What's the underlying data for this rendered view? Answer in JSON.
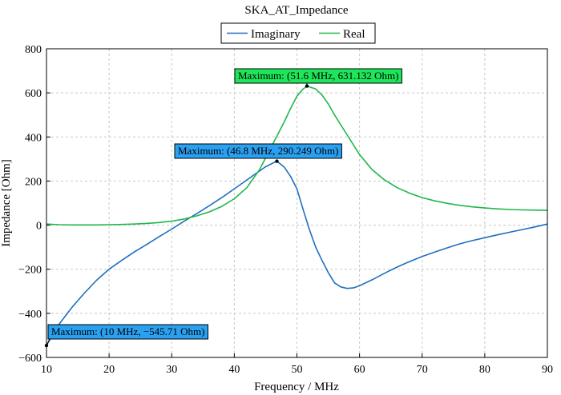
{
  "chart_data": {
    "type": "line",
    "title": "SKA_AT_Impedance",
    "xlabel": "Frequency / MHz",
    "ylabel": "Impedance [Ohm]",
    "xlim": [
      10,
      90
    ],
    "ylim": [
      -600,
      800
    ],
    "xticks": [
      10,
      20,
      30,
      40,
      50,
      60,
      70,
      80,
      90
    ],
    "yticks": [
      -600,
      -400,
      -200,
      0,
      200,
      400,
      600,
      800
    ],
    "grid": true,
    "legend_position": "top-center",
    "series": [
      {
        "name": "Imaginary",
        "color": "#1f6fc0",
        "x": [
          10,
          12,
          14,
          16,
          18,
          20,
          22,
          24,
          26,
          28,
          30,
          32,
          34,
          36,
          38,
          40,
          42,
          44,
          45,
          46.8,
          48,
          49,
          50,
          51,
          52,
          53,
          54,
          55,
          56,
          57,
          58,
          59,
          60,
          62,
          64,
          66,
          68,
          70,
          72,
          74,
          76,
          78,
          80,
          82,
          84,
          86,
          88,
          90
        ],
        "values": [
          -545.71,
          -450,
          -375,
          -310,
          -250,
          -200,
          -160,
          -122,
          -88,
          -52,
          -18,
          18,
          52,
          88,
          125,
          165,
          205,
          245,
          265,
          290.249,
          262,
          220,
          165,
          70,
          -20,
          -100,
          -160,
          -215,
          -262,
          -280,
          -287,
          -285,
          -275,
          -248,
          -218,
          -190,
          -165,
          -142,
          -122,
          -103,
          -85,
          -70,
          -57,
          -44,
          -32,
          -20,
          -8,
          5
        ]
      },
      {
        "name": "Real",
        "color": "#1eb84a",
        "x": [
          10,
          12,
          14,
          16,
          18,
          20,
          22,
          24,
          26,
          28,
          30,
          32,
          34,
          36,
          38,
          40,
          42,
          44,
          46,
          48,
          49,
          50,
          51,
          51.6,
          53,
          54,
          55,
          56,
          58,
          60,
          62,
          64,
          66,
          68,
          70,
          72,
          74,
          76,
          78,
          80,
          82,
          84,
          86,
          88,
          90
        ],
        "values": [
          5,
          2,
          1,
          1,
          1,
          2,
          3,
          5,
          8,
          12,
          18,
          28,
          42,
          60,
          85,
          120,
          170,
          250,
          360,
          470,
          530,
          585,
          618,
          631.132,
          618,
          590,
          550,
          500,
          410,
          320,
          252,
          205,
          170,
          145,
          125,
          110,
          99,
          90,
          83,
          78,
          74,
          71,
          69,
          68,
          67
        ]
      }
    ],
    "annotations": [
      {
        "text": "Maximum: (51.6 MHz, 631.132 Ohm)",
        "x": 51.6,
        "y": 631.132,
        "series": "Real"
      },
      {
        "text": "Maximum: (46.8 MHz, 290.249 Ohm)",
        "x": 46.8,
        "y": 290.249,
        "series": "Imaginary"
      },
      {
        "text": "Maximum: (10 MHz, −545.71 Ohm)",
        "x": 10,
        "y": -545.71,
        "series": "Imaginary"
      }
    ]
  }
}
